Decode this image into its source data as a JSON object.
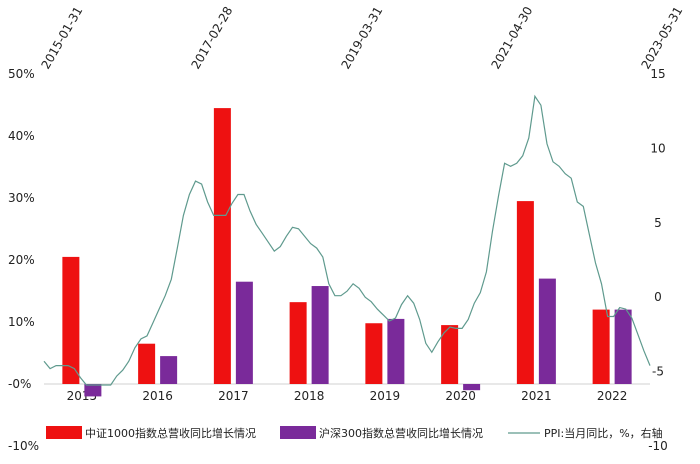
{
  "chart_data": {
    "type": "bar",
    "categories": [
      "2015",
      "2016",
      "2017",
      "2018",
      "2019",
      "2020",
      "2021",
      "2022"
    ],
    "ylim_left": [
      -10,
      50
    ],
    "yticks_left": [
      "50%",
      "40%",
      "30%",
      "20%",
      "10%",
      "-0%",
      "-10%"
    ],
    "ylim_right": [
      -10,
      15
    ],
    "yticks_right": [
      "15",
      "10",
      "5",
      "0",
      "-5",
      "-10"
    ],
    "top_date_labels": [
      "2015-01-31",
      "2017-02-28",
      "2019-03-31",
      "2021-04-30",
      "2023-05-31"
    ],
    "series": [
      {
        "name": "中证1000指数总营收同比增长情况",
        "axis": "left",
        "color": "#ee1111",
        "values": [
          20.5,
          6.5,
          44.5,
          13.2,
          9.8,
          9.5,
          29.5,
          12.0
        ]
      },
      {
        "name": "沪深300指数总营收同比增长情况",
        "axis": "left",
        "color": "#7a2a9a",
        "values": [
          -2.0,
          4.5,
          16.5,
          15.8,
          10.5,
          -1.0,
          17.0,
          12.0
        ]
      }
    ],
    "line_series": {
      "name": "PPI:当月同比，%，右轴",
      "axis": "right",
      "color": "#5f9a8e",
      "x_start": "2015-01",
      "values": [
        -4.3,
        -4.8,
        -4.6,
        -4.6,
        -4.6,
        -4.8,
        -5.4,
        -5.9,
        -5.9,
        -5.9,
        -5.9,
        -5.9,
        -5.3,
        -4.9,
        -4.3,
        -3.4,
        -2.8,
        -2.6,
        -1.7,
        -0.8,
        0.1,
        1.2,
        3.3,
        5.5,
        6.9,
        7.8,
        7.6,
        6.4,
        5.5,
        5.5,
        5.5,
        6.3,
        6.9,
        6.9,
        5.8,
        4.9,
        4.3,
        3.7,
        3.1,
        3.4,
        4.1,
        4.7,
        4.6,
        4.1,
        3.6,
        3.3,
        2.7,
        0.9,
        0.1,
        0.1,
        0.4,
        0.9,
        0.6,
        0.0,
        -0.3,
        -0.8,
        -1.2,
        -1.6,
        -1.4,
        -0.5,
        0.1,
        -0.4,
        -1.5,
        -3.1,
        -3.7,
        -3.0,
        -2.4,
        -2.0,
        -2.1,
        -2.1,
        -1.5,
        -0.4,
        0.3,
        1.7,
        4.4,
        6.8,
        9.0,
        8.8,
        9.0,
        9.5,
        10.7,
        13.5,
        12.9,
        10.3,
        9.1,
        8.8,
        8.3,
        8.0,
        6.4,
        6.1,
        4.2,
        2.3,
        0.9,
        -1.3,
        -1.3,
        -0.7,
        -0.8,
        -1.4,
        -2.5,
        -3.6,
        -4.6
      ]
    },
    "legend_position": "bottom"
  }
}
